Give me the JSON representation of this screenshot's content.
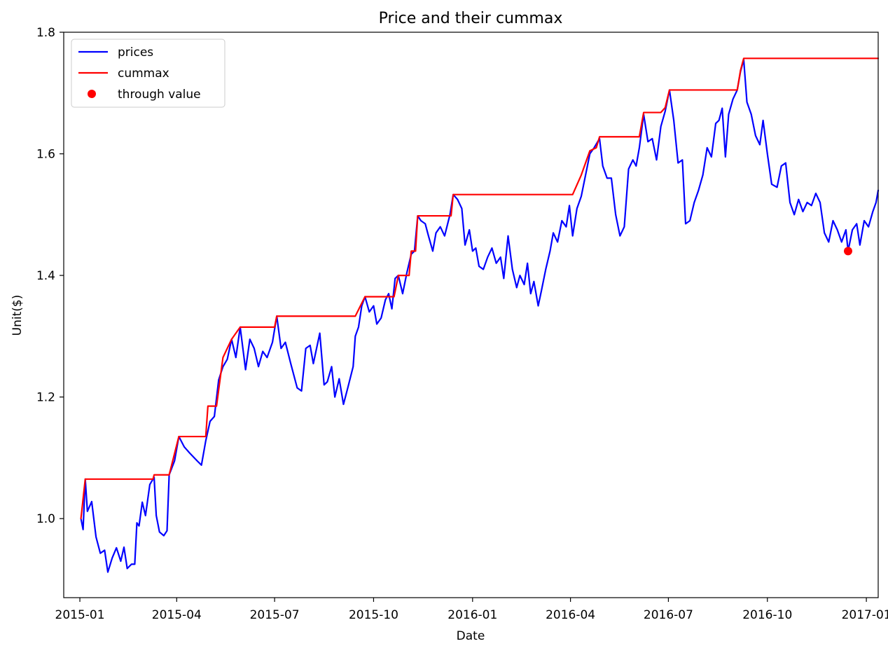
{
  "chart_data": {
    "type": "line",
    "title": "Price and their cummax",
    "xlabel": "Date",
    "ylabel": "Unit($)",
    "ylim": [
      0.87,
      1.8
    ],
    "xlim": [
      "2014-12-17",
      "2017-01-12"
    ],
    "x_ticks": [
      "2015-01",
      "2015-04",
      "2015-07",
      "2015-10",
      "2016-01",
      "2016-04",
      "2016-07",
      "2016-10",
      "2017-01"
    ],
    "y_ticks": [
      "1.0",
      "1.2",
      "1.4",
      "1.6",
      "1.8"
    ],
    "grid": false,
    "legend_position": "upper left",
    "series": [
      {
        "name": "prices",
        "color": "#0000ff",
        "style": "line",
        "points": [
          [
            "2015-01-02",
            1.0
          ],
          [
            "2015-01-04",
            0.982
          ],
          [
            "2015-01-06",
            1.065
          ],
          [
            "2015-01-08",
            1.012
          ],
          [
            "2015-01-12",
            1.028
          ],
          [
            "2015-01-16",
            0.97
          ],
          [
            "2015-01-20",
            0.943
          ],
          [
            "2015-01-24",
            0.948
          ],
          [
            "2015-01-27",
            0.912
          ],
          [
            "2015-01-31",
            0.935
          ],
          [
            "2015-02-04",
            0.952
          ],
          [
            "2015-02-08",
            0.93
          ],
          [
            "2015-02-11",
            0.953
          ],
          [
            "2015-02-14",
            0.918
          ],
          [
            "2015-02-18",
            0.925
          ],
          [
            "2015-02-21",
            0.925
          ],
          [
            "2015-02-23",
            0.993
          ],
          [
            "2015-02-25",
            0.988
          ],
          [
            "2015-02-28",
            1.027
          ],
          [
            "2015-03-03",
            1.005
          ],
          [
            "2015-03-07",
            1.056
          ],
          [
            "2015-03-11",
            1.068
          ],
          [
            "2015-03-13",
            1.005
          ],
          [
            "2015-03-16",
            0.978
          ],
          [
            "2015-03-20",
            0.972
          ],
          [
            "2015-03-23",
            0.98
          ],
          [
            "2015-03-25",
            1.072
          ],
          [
            "2015-03-30",
            1.095
          ],
          [
            "2015-04-03",
            1.135
          ],
          [
            "2015-04-08",
            1.118
          ],
          [
            "2015-04-13",
            1.108
          ],
          [
            "2015-04-20",
            1.095
          ],
          [
            "2015-04-24",
            1.088
          ],
          [
            "2015-04-28",
            1.128
          ],
          [
            "2015-05-02",
            1.16
          ],
          [
            "2015-05-06",
            1.168
          ],
          [
            "2015-05-10",
            1.228
          ],
          [
            "2015-05-14",
            1.25
          ],
          [
            "2015-05-18",
            1.262
          ],
          [
            "2015-05-22",
            1.295
          ],
          [
            "2015-05-26",
            1.265
          ],
          [
            "2015-05-30",
            1.315
          ],
          [
            "2015-06-04",
            1.245
          ],
          [
            "2015-06-08",
            1.295
          ],
          [
            "2015-06-12",
            1.28
          ],
          [
            "2015-06-16",
            1.25
          ],
          [
            "2015-06-20",
            1.275
          ],
          [
            "2015-06-24",
            1.265
          ],
          [
            "2015-06-29",
            1.29
          ],
          [
            "2015-07-03",
            1.333
          ],
          [
            "2015-07-07",
            1.28
          ],
          [
            "2015-07-11",
            1.29
          ],
          [
            "2015-07-16",
            1.255
          ],
          [
            "2015-07-22",
            1.215
          ],
          [
            "2015-07-26",
            1.21
          ],
          [
            "2015-07-30",
            1.28
          ],
          [
            "2015-08-03",
            1.285
          ],
          [
            "2015-08-06",
            1.255
          ],
          [
            "2015-08-12",
            1.305
          ],
          [
            "2015-08-16",
            1.22
          ],
          [
            "2015-08-19",
            1.225
          ],
          [
            "2015-08-23",
            1.25
          ],
          [
            "2015-08-26",
            1.2
          ],
          [
            "2015-08-30",
            1.23
          ],
          [
            "2015-09-03",
            1.188
          ],
          [
            "2015-09-07",
            1.215
          ],
          [
            "2015-09-12",
            1.25
          ],
          [
            "2015-09-14",
            1.3
          ],
          [
            "2015-09-17",
            1.315
          ],
          [
            "2015-09-20",
            1.35
          ],
          [
            "2015-09-23",
            1.365
          ],
          [
            "2015-09-27",
            1.34
          ],
          [
            "2015-10-01",
            1.35
          ],
          [
            "2015-10-04",
            1.32
          ],
          [
            "2015-10-08",
            1.33
          ],
          [
            "2015-10-12",
            1.36
          ],
          [
            "2015-10-15",
            1.37
          ],
          [
            "2015-10-18",
            1.345
          ],
          [
            "2015-10-21",
            1.395
          ],
          [
            "2015-10-24",
            1.4
          ],
          [
            "2015-10-28",
            1.37
          ],
          [
            "2015-11-01",
            1.405
          ],
          [
            "2015-11-05",
            1.435
          ],
          [
            "2015-11-08",
            1.44
          ],
          [
            "2015-11-11",
            1.498
          ],
          [
            "2015-11-14",
            1.49
          ],
          [
            "2015-11-18",
            1.485
          ],
          [
            "2015-11-21",
            1.465
          ],
          [
            "2015-11-25",
            1.44
          ],
          [
            "2015-11-28",
            1.47
          ],
          [
            "2015-12-02",
            1.48
          ],
          [
            "2015-12-06",
            1.465
          ],
          [
            "2015-12-11",
            1.5
          ],
          [
            "2015-12-14",
            1.533
          ],
          [
            "2015-12-18",
            1.525
          ],
          [
            "2015-12-22",
            1.51
          ],
          [
            "2015-12-25",
            1.45
          ],
          [
            "2015-12-29",
            1.475
          ],
          [
            "2016-01-01",
            1.44
          ],
          [
            "2016-01-04",
            1.445
          ],
          [
            "2016-01-07",
            1.415
          ],
          [
            "2016-01-11",
            1.41
          ],
          [
            "2016-01-15",
            1.43
          ],
          [
            "2016-01-19",
            1.445
          ],
          [
            "2016-01-23",
            1.42
          ],
          [
            "2016-01-27",
            1.43
          ],
          [
            "2016-01-30",
            1.395
          ],
          [
            "2016-02-03",
            1.465
          ],
          [
            "2016-02-07",
            1.41
          ],
          [
            "2016-02-11",
            1.38
          ],
          [
            "2016-02-14",
            1.4
          ],
          [
            "2016-02-18",
            1.385
          ],
          [
            "2016-02-21",
            1.42
          ],
          [
            "2016-02-24",
            1.37
          ],
          [
            "2016-02-27",
            1.39
          ],
          [
            "2016-03-02",
            1.35
          ],
          [
            "2016-03-05",
            1.375
          ],
          [
            "2016-03-09",
            1.41
          ],
          [
            "2016-03-13",
            1.44
          ],
          [
            "2016-03-16",
            1.47
          ],
          [
            "2016-03-20",
            1.455
          ],
          [
            "2016-03-24",
            1.49
          ],
          [
            "2016-03-28",
            1.48
          ],
          [
            "2016-03-31",
            1.515
          ],
          [
            "2016-04-03",
            1.465
          ],
          [
            "2016-04-07",
            1.51
          ],
          [
            "2016-04-11",
            1.53
          ],
          [
            "2016-04-15",
            1.565
          ],
          [
            "2016-04-19",
            1.6
          ],
          [
            "2016-04-23",
            1.61
          ],
          [
            "2016-04-28",
            1.625
          ],
          [
            "2016-05-01",
            1.58
          ],
          [
            "2016-05-05",
            1.56
          ],
          [
            "2016-05-09",
            1.56
          ],
          [
            "2016-05-13",
            1.5
          ],
          [
            "2016-05-17",
            1.465
          ],
          [
            "2016-05-21",
            1.48
          ],
          [
            "2016-05-25",
            1.575
          ],
          [
            "2016-05-29",
            1.59
          ],
          [
            "2016-06-01",
            1.58
          ],
          [
            "2016-06-04",
            1.61
          ],
          [
            "2016-06-08",
            1.665
          ],
          [
            "2016-06-12",
            1.62
          ],
          [
            "2016-06-16",
            1.625
          ],
          [
            "2016-06-20",
            1.59
          ],
          [
            "2016-06-24",
            1.645
          ],
          [
            "2016-06-28",
            1.67
          ],
          [
            "2016-07-02",
            1.705
          ],
          [
            "2016-07-06",
            1.655
          ],
          [
            "2016-07-10",
            1.585
          ],
          [
            "2016-07-14",
            1.59
          ],
          [
            "2016-07-17",
            1.485
          ],
          [
            "2016-07-21",
            1.49
          ],
          [
            "2016-07-25",
            1.52
          ],
          [
            "2016-07-29",
            1.54
          ],
          [
            "2016-08-02",
            1.565
          ],
          [
            "2016-08-06",
            1.61
          ],
          [
            "2016-08-10",
            1.595
          ],
          [
            "2016-08-14",
            1.65
          ],
          [
            "2016-08-17",
            1.655
          ],
          [
            "2016-08-20",
            1.675
          ],
          [
            "2016-08-23",
            1.595
          ],
          [
            "2016-08-26",
            1.665
          ],
          [
            "2016-08-30",
            1.69
          ],
          [
            "2016-09-03",
            1.705
          ],
          [
            "2016-09-06",
            1.735
          ],
          [
            "2016-09-09",
            1.755
          ],
          [
            "2016-09-12",
            1.685
          ],
          [
            "2016-09-16",
            1.665
          ],
          [
            "2016-09-20",
            1.63
          ],
          [
            "2016-09-24",
            1.615
          ],
          [
            "2016-09-27",
            1.655
          ],
          [
            "2016-10-01",
            1.6
          ],
          [
            "2016-10-05",
            1.55
          ],
          [
            "2016-10-10",
            1.545
          ],
          [
            "2016-10-14",
            1.58
          ],
          [
            "2016-10-18",
            1.585
          ],
          [
            "2016-10-22",
            1.52
          ],
          [
            "2016-10-26",
            1.5
          ],
          [
            "2016-10-30",
            1.525
          ],
          [
            "2016-11-03",
            1.505
          ],
          [
            "2016-11-07",
            1.52
          ],
          [
            "2016-11-11",
            1.515
          ],
          [
            "2016-11-15",
            1.535
          ],
          [
            "2016-11-19",
            1.52
          ],
          [
            "2016-11-23",
            1.47
          ],
          [
            "2016-11-27",
            1.455
          ],
          [
            "2016-12-01",
            1.49
          ],
          [
            "2016-12-05",
            1.475
          ],
          [
            "2016-12-09",
            1.455
          ],
          [
            "2016-12-13",
            1.475
          ],
          [
            "2016-12-15",
            1.44
          ],
          [
            "2016-12-19",
            1.475
          ],
          [
            "2016-12-23",
            1.485
          ],
          [
            "2016-12-26",
            1.45
          ],
          [
            "2016-12-30",
            1.49
          ],
          [
            "2017-01-03",
            1.48
          ],
          [
            "2017-01-07",
            1.505
          ],
          [
            "2017-01-10",
            1.52
          ],
          [
            "2017-01-12",
            1.54
          ]
        ]
      },
      {
        "name": "cummax",
        "color": "#ff0000",
        "style": "line",
        "points": [
          [
            "2015-01-02",
            1.0
          ],
          [
            "2015-01-06",
            1.065
          ],
          [
            "2015-03-10",
            1.065
          ],
          [
            "2015-03-11",
            1.072
          ],
          [
            "2015-03-25",
            1.072
          ],
          [
            "2015-04-03",
            1.135
          ],
          [
            "2015-04-28",
            1.135
          ],
          [
            "2015-04-30",
            1.185
          ],
          [
            "2015-05-08",
            1.185
          ],
          [
            "2015-05-14",
            1.265
          ],
          [
            "2015-05-22",
            1.295
          ],
          [
            "2015-05-30",
            1.315
          ],
          [
            "2015-07-01",
            1.315
          ],
          [
            "2015-07-03",
            1.333
          ],
          [
            "2015-09-14",
            1.333
          ],
          [
            "2015-09-23",
            1.365
          ],
          [
            "2015-10-20",
            1.365
          ],
          [
            "2015-10-24",
            1.4
          ],
          [
            "2015-11-03",
            1.4
          ],
          [
            "2015-11-05",
            1.44
          ],
          [
            "2015-11-09",
            1.44
          ],
          [
            "2015-11-11",
            1.498
          ],
          [
            "2015-12-12",
            1.498
          ],
          [
            "2015-12-14",
            1.533
          ],
          [
            "2016-04-03",
            1.533
          ],
          [
            "2016-04-11",
            1.565
          ],
          [
            "2016-04-19",
            1.605
          ],
          [
            "2016-04-25",
            1.61
          ],
          [
            "2016-04-28",
            1.628
          ],
          [
            "2016-06-04",
            1.628
          ],
          [
            "2016-06-08",
            1.668
          ],
          [
            "2016-06-24",
            1.668
          ],
          [
            "2016-06-28",
            1.676
          ],
          [
            "2016-07-02",
            1.705
          ],
          [
            "2016-09-03",
            1.705
          ],
          [
            "2016-09-06",
            1.737
          ],
          [
            "2016-09-09",
            1.757
          ],
          [
            "2017-01-12",
            1.757
          ]
        ]
      },
      {
        "name": "through value",
        "color": "#ff0000",
        "style": "marker",
        "points": [
          [
            "2016-12-15",
            1.44
          ]
        ]
      }
    ]
  }
}
